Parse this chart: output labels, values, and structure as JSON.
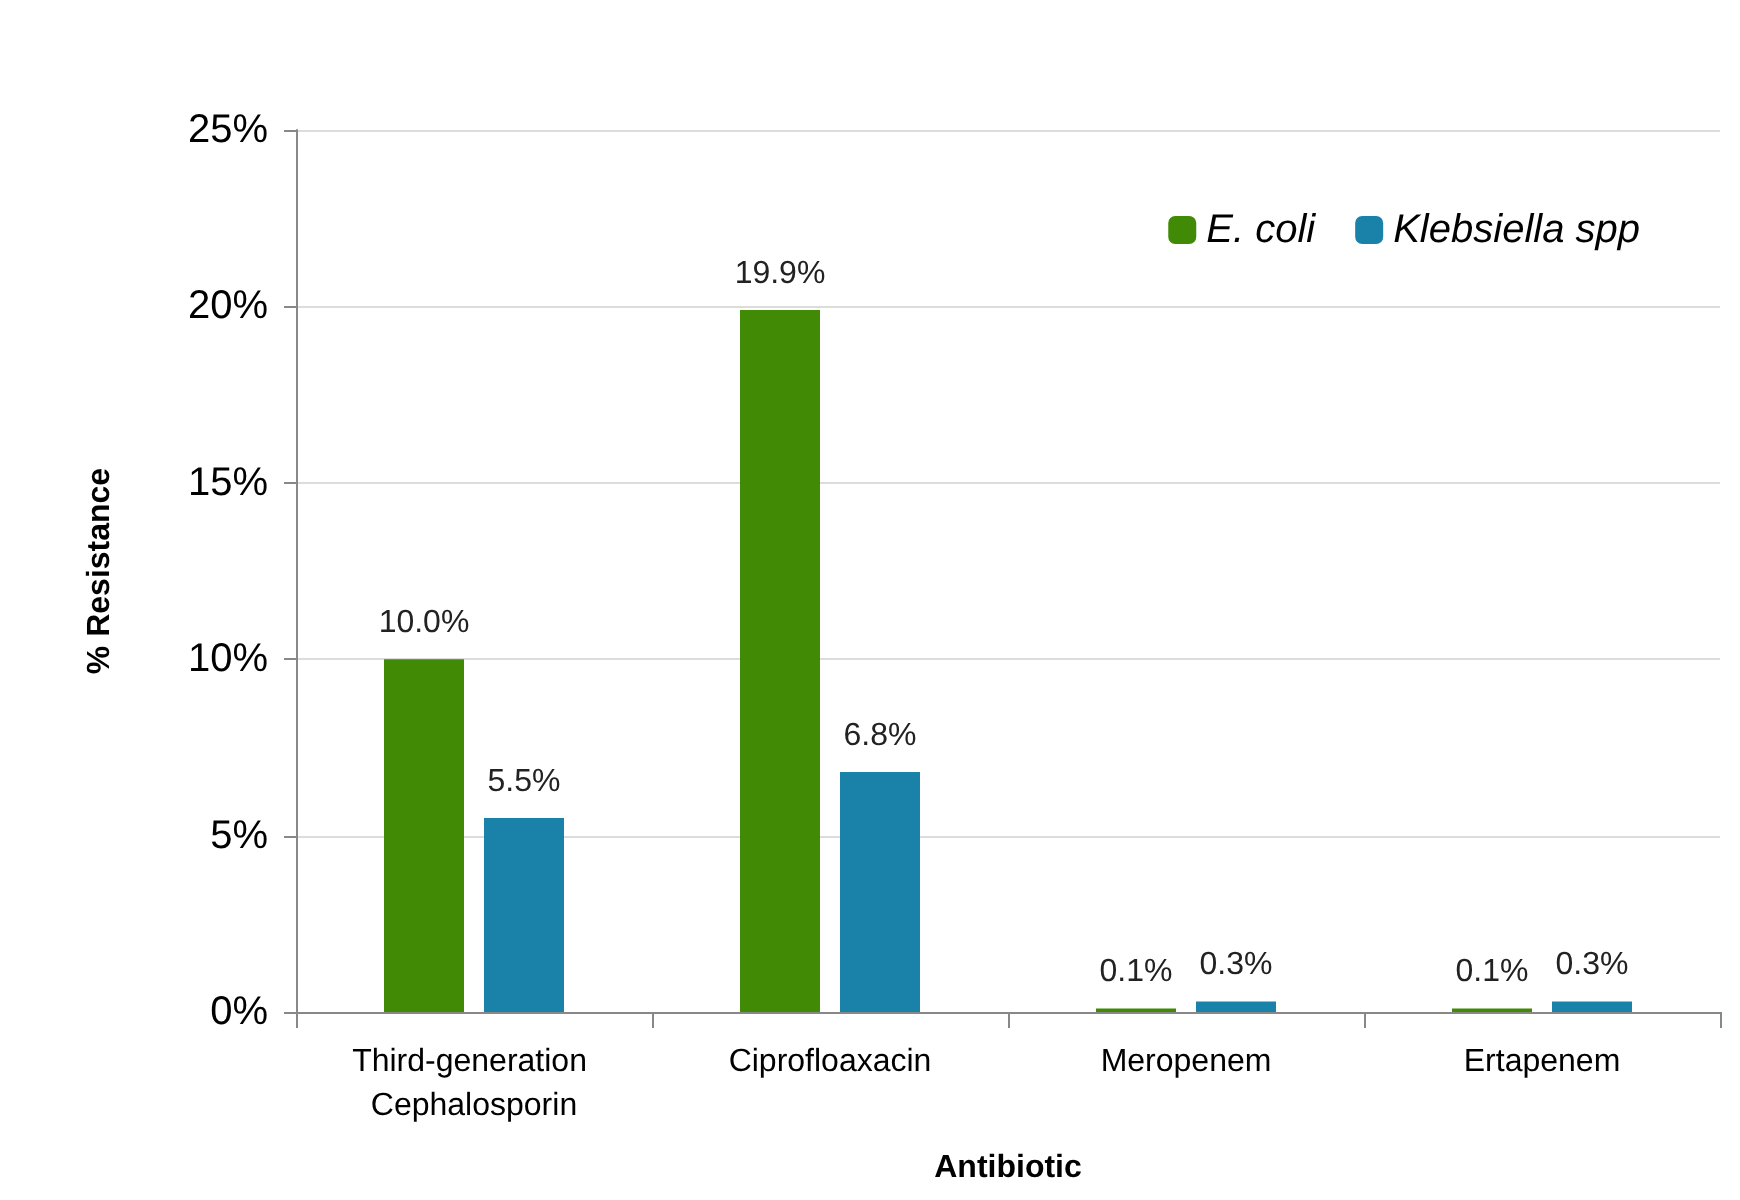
{
  "chart_data": {
    "type": "bar",
    "xlabel": "Antibiotic",
    "ylabel": "% Resistance",
    "categories": [
      "Third-generation Cephalosporin",
      "Ciprofloaxacin",
      "Meropenem",
      "Ertapenem"
    ],
    "series": [
      {
        "name": "E. coli",
        "color": "#418a06",
        "values": [
          10.0,
          19.9,
          0.1,
          0.1
        ],
        "value_labels": [
          "10.0%",
          "19.9%",
          "0.1%",
          "0.1%"
        ]
      },
      {
        "name": "Klebsiella spp",
        "color": "#1a82a8",
        "values": [
          5.5,
          6.8,
          0.3,
          0.3
        ],
        "value_labels": [
          "5.5%",
          "6.8%",
          "0.3%",
          "0.3%"
        ]
      }
    ],
    "ylim": [
      0,
      25
    ],
    "yticks": [
      {
        "value": 0,
        "label": "0%"
      },
      {
        "value": 5,
        "label": "5%"
      },
      {
        "value": 10,
        "label": "10%"
      },
      {
        "value": 15,
        "label": "15%"
      },
      {
        "value": 20,
        "label": "20%"
      },
      {
        "value": 25,
        "label": "25%"
      }
    ],
    "grid": "y",
    "legend": "top right"
  }
}
